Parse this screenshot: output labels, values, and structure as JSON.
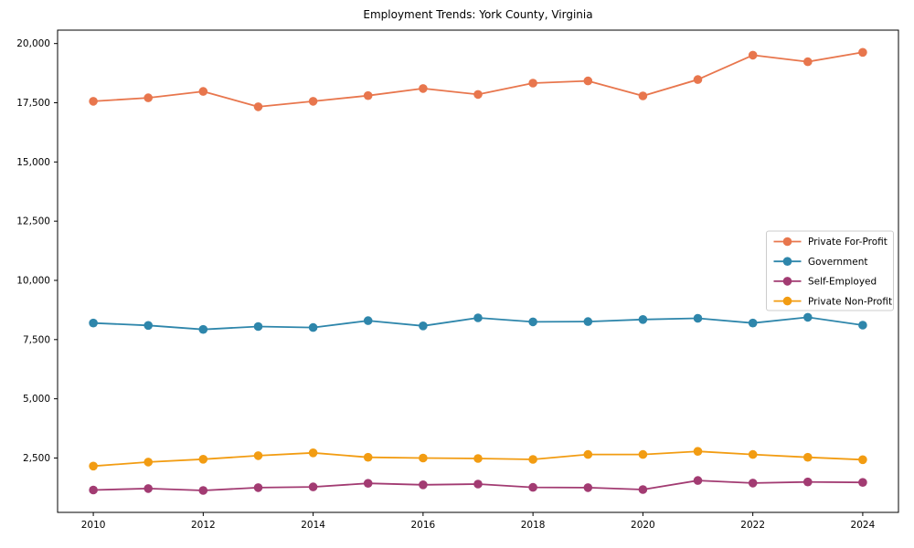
{
  "figure": {
    "background": "#ffffff",
    "spine_color": "#000000",
    "legend_border_color": "#cccccc",
    "legend_background": "#ffffff"
  },
  "chart_data": {
    "type": "line",
    "title": "Employment Trends: York County, Virginia",
    "xlabel": "",
    "ylabel": "",
    "grid": false,
    "legend_position": "center-right",
    "x": [
      2010,
      2011,
      2012,
      2013,
      2014,
      2015,
      2016,
      2017,
      2018,
      2019,
      2020,
      2021,
      2022,
      2023,
      2024
    ],
    "xticks": [
      2010,
      2012,
      2014,
      2016,
      2018,
      2020,
      2022,
      2024
    ],
    "yticks": [
      2500,
      5000,
      7500,
      10000,
      12500,
      15000,
      17500,
      20000
    ],
    "xlim": [
      2009.35,
      2024.65
    ],
    "ylim": [
      204,
      20566
    ],
    "series": [
      {
        "name": "Private For-Profit",
        "color": "#e8764d",
        "values": [
          17560,
          17710,
          17980,
          17330,
          17560,
          17800,
          18100,
          17850,
          18330,
          18420,
          17790,
          18480,
          19510,
          19230,
          19630
        ]
      },
      {
        "name": "Government",
        "color": "#2e86ab",
        "values": [
          8200,
          8100,
          7930,
          8050,
          8010,
          8300,
          8080,
          8420,
          8250,
          8260,
          8350,
          8400,
          8200,
          8440,
          8110
        ]
      },
      {
        "name": "Self-Employed",
        "color": "#a23b72",
        "values": [
          1150,
          1210,
          1130,
          1250,
          1280,
          1430,
          1370,
          1400,
          1260,
          1250,
          1170,
          1550,
          1440,
          1490,
          1470
        ]
      },
      {
        "name": "Private Non-Profit",
        "color": "#f29c12",
        "values": [
          2160,
          2330,
          2450,
          2600,
          2720,
          2530,
          2500,
          2480,
          2440,
          2650,
          2650,
          2780,
          2650,
          2530,
          2430
        ]
      }
    ]
  }
}
